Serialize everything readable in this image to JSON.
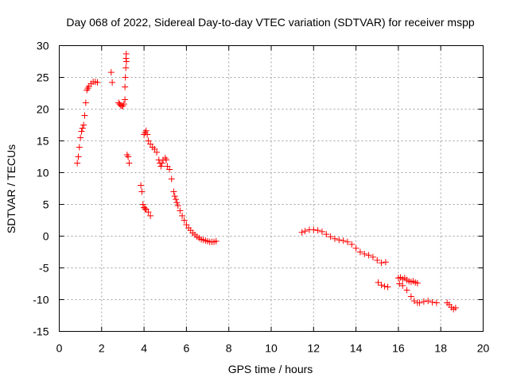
{
  "chart_data": {
    "type": "scatter",
    "title": "Day 068 of 2022, Sidereal Day-to-day VTEC variation (SDTVAR) for receiver mspp",
    "xlabel": "GPS time / hours",
    "ylabel": "SDTVAR / TECUs",
    "xlim": [
      0,
      20
    ],
    "ylim": [
      -15,
      30
    ],
    "grid": true,
    "marker": "plus",
    "color": "#ff0000",
    "xticks": [
      "0",
      "2",
      "4",
      "6",
      "8",
      "10",
      "12",
      "14",
      "16",
      "18",
      "20"
    ],
    "yticks": [
      "30",
      "25",
      "20",
      "15",
      "10",
      "5",
      "0",
      "-5",
      "-10",
      "-15"
    ],
    "series": [
      {
        "name": "SDTVAR",
        "x": [
          0.85,
          0.9,
          0.95,
          1.0,
          1.05,
          1.1,
          1.15,
          1.2,
          1.25,
          1.3,
          1.35,
          1.4,
          1.5,
          1.6,
          1.7,
          1.8,
          2.45,
          2.5,
          2.8,
          2.85,
          2.9,
          2.95,
          3.0,
          3.05,
          3.1,
          3.1,
          3.12,
          3.14,
          3.15,
          3.16,
          3.17,
          3.2,
          3.25,
          3.3,
          3.85,
          3.9,
          3.95,
          4.0,
          4.05,
          4.1,
          4.2,
          4.3,
          4.0,
          4.05,
          4.1,
          4.15,
          4.2,
          4.3,
          4.4,
          4.5,
          4.6,
          4.7,
          4.75,
          4.8,
          4.85,
          4.9,
          5.0,
          5.05,
          5.1,
          5.2,
          5.3,
          5.4,
          5.45,
          5.5,
          5.55,
          5.6,
          5.7,
          5.8,
          5.9,
          6.0,
          6.1,
          6.2,
          6.3,
          6.4,
          6.5,
          6.6,
          6.7,
          6.8,
          6.9,
          7.0,
          7.1,
          7.2,
          7.3,
          7.4,
          11.45,
          11.6,
          11.8,
          12.0,
          12.2,
          12.4,
          12.6,
          12.8,
          13.0,
          13.2,
          13.4,
          13.6,
          13.8,
          14.0,
          14.2,
          14.4,
          14.6,
          14.8,
          15.0,
          15.2,
          15.4,
          15.05,
          15.2,
          15.35,
          15.5,
          16.0,
          16.1,
          16.2,
          16.3,
          16.4,
          16.5,
          16.6,
          16.7,
          16.8,
          16.9,
          16.05,
          16.2,
          16.4,
          16.6,
          16.75,
          16.9,
          17.0,
          17.2,
          17.4,
          17.6,
          17.8,
          18.3,
          18.4,
          18.5,
          18.6,
          18.7
        ],
        "y": [
          11.5,
          12.5,
          14.0,
          15.5,
          16.5,
          17.0,
          17.5,
          19.0,
          21.0,
          23.0,
          23.3,
          23.6,
          24.0,
          24.3,
          24.3,
          24.2,
          25.8,
          24.2,
          21.0,
          20.8,
          20.6,
          20.5,
          20.5,
          20.8,
          21.5,
          23.5,
          25.0,
          26.5,
          28.0,
          28.7,
          27.5,
          12.8,
          12.5,
          11.5,
          8.0,
          7.0,
          5.0,
          4.5,
          4.3,
          4.2,
          3.8,
          3.2,
          16.0,
          16.3,
          16.6,
          16.0,
          15.0,
          14.5,
          14.0,
          13.7,
          13.2,
          12.0,
          11.5,
          11.0,
          11.5,
          12.0,
          12.3,
          12.0,
          11.0,
          10.5,
          9.0,
          7.0,
          6.3,
          5.8,
          5.3,
          4.8,
          4.0,
          3.2,
          2.5,
          1.8,
          1.3,
          0.9,
          0.5,
          0.2,
          -0.1,
          -0.3,
          -0.5,
          -0.6,
          -0.7,
          -0.8,
          -0.9,
          -0.9,
          -0.9,
          -0.8,
          0.6,
          0.8,
          1.0,
          1.0,
          0.9,
          0.7,
          0.3,
          -0.1,
          -0.4,
          -0.6,
          -0.7,
          -0.9,
          -1.3,
          -1.9,
          -2.5,
          -2.8,
          -3.0,
          -3.3,
          -3.8,
          -4.2,
          -4.1,
          -7.3,
          -7.7,
          -7.9,
          -8.0,
          -6.6,
          -6.5,
          -6.8,
          -6.6,
          -6.9,
          -7.1,
          -7.2,
          -7.1,
          -7.3,
          -7.4,
          -7.5,
          -7.8,
          -8.5,
          -9.5,
          -10.2,
          -10.5,
          -10.5,
          -10.3,
          -10.2,
          -10.4,
          -10.5,
          -10.5,
          -10.8,
          -11.2,
          -11.5,
          -11.3
        ]
      }
    ]
  }
}
